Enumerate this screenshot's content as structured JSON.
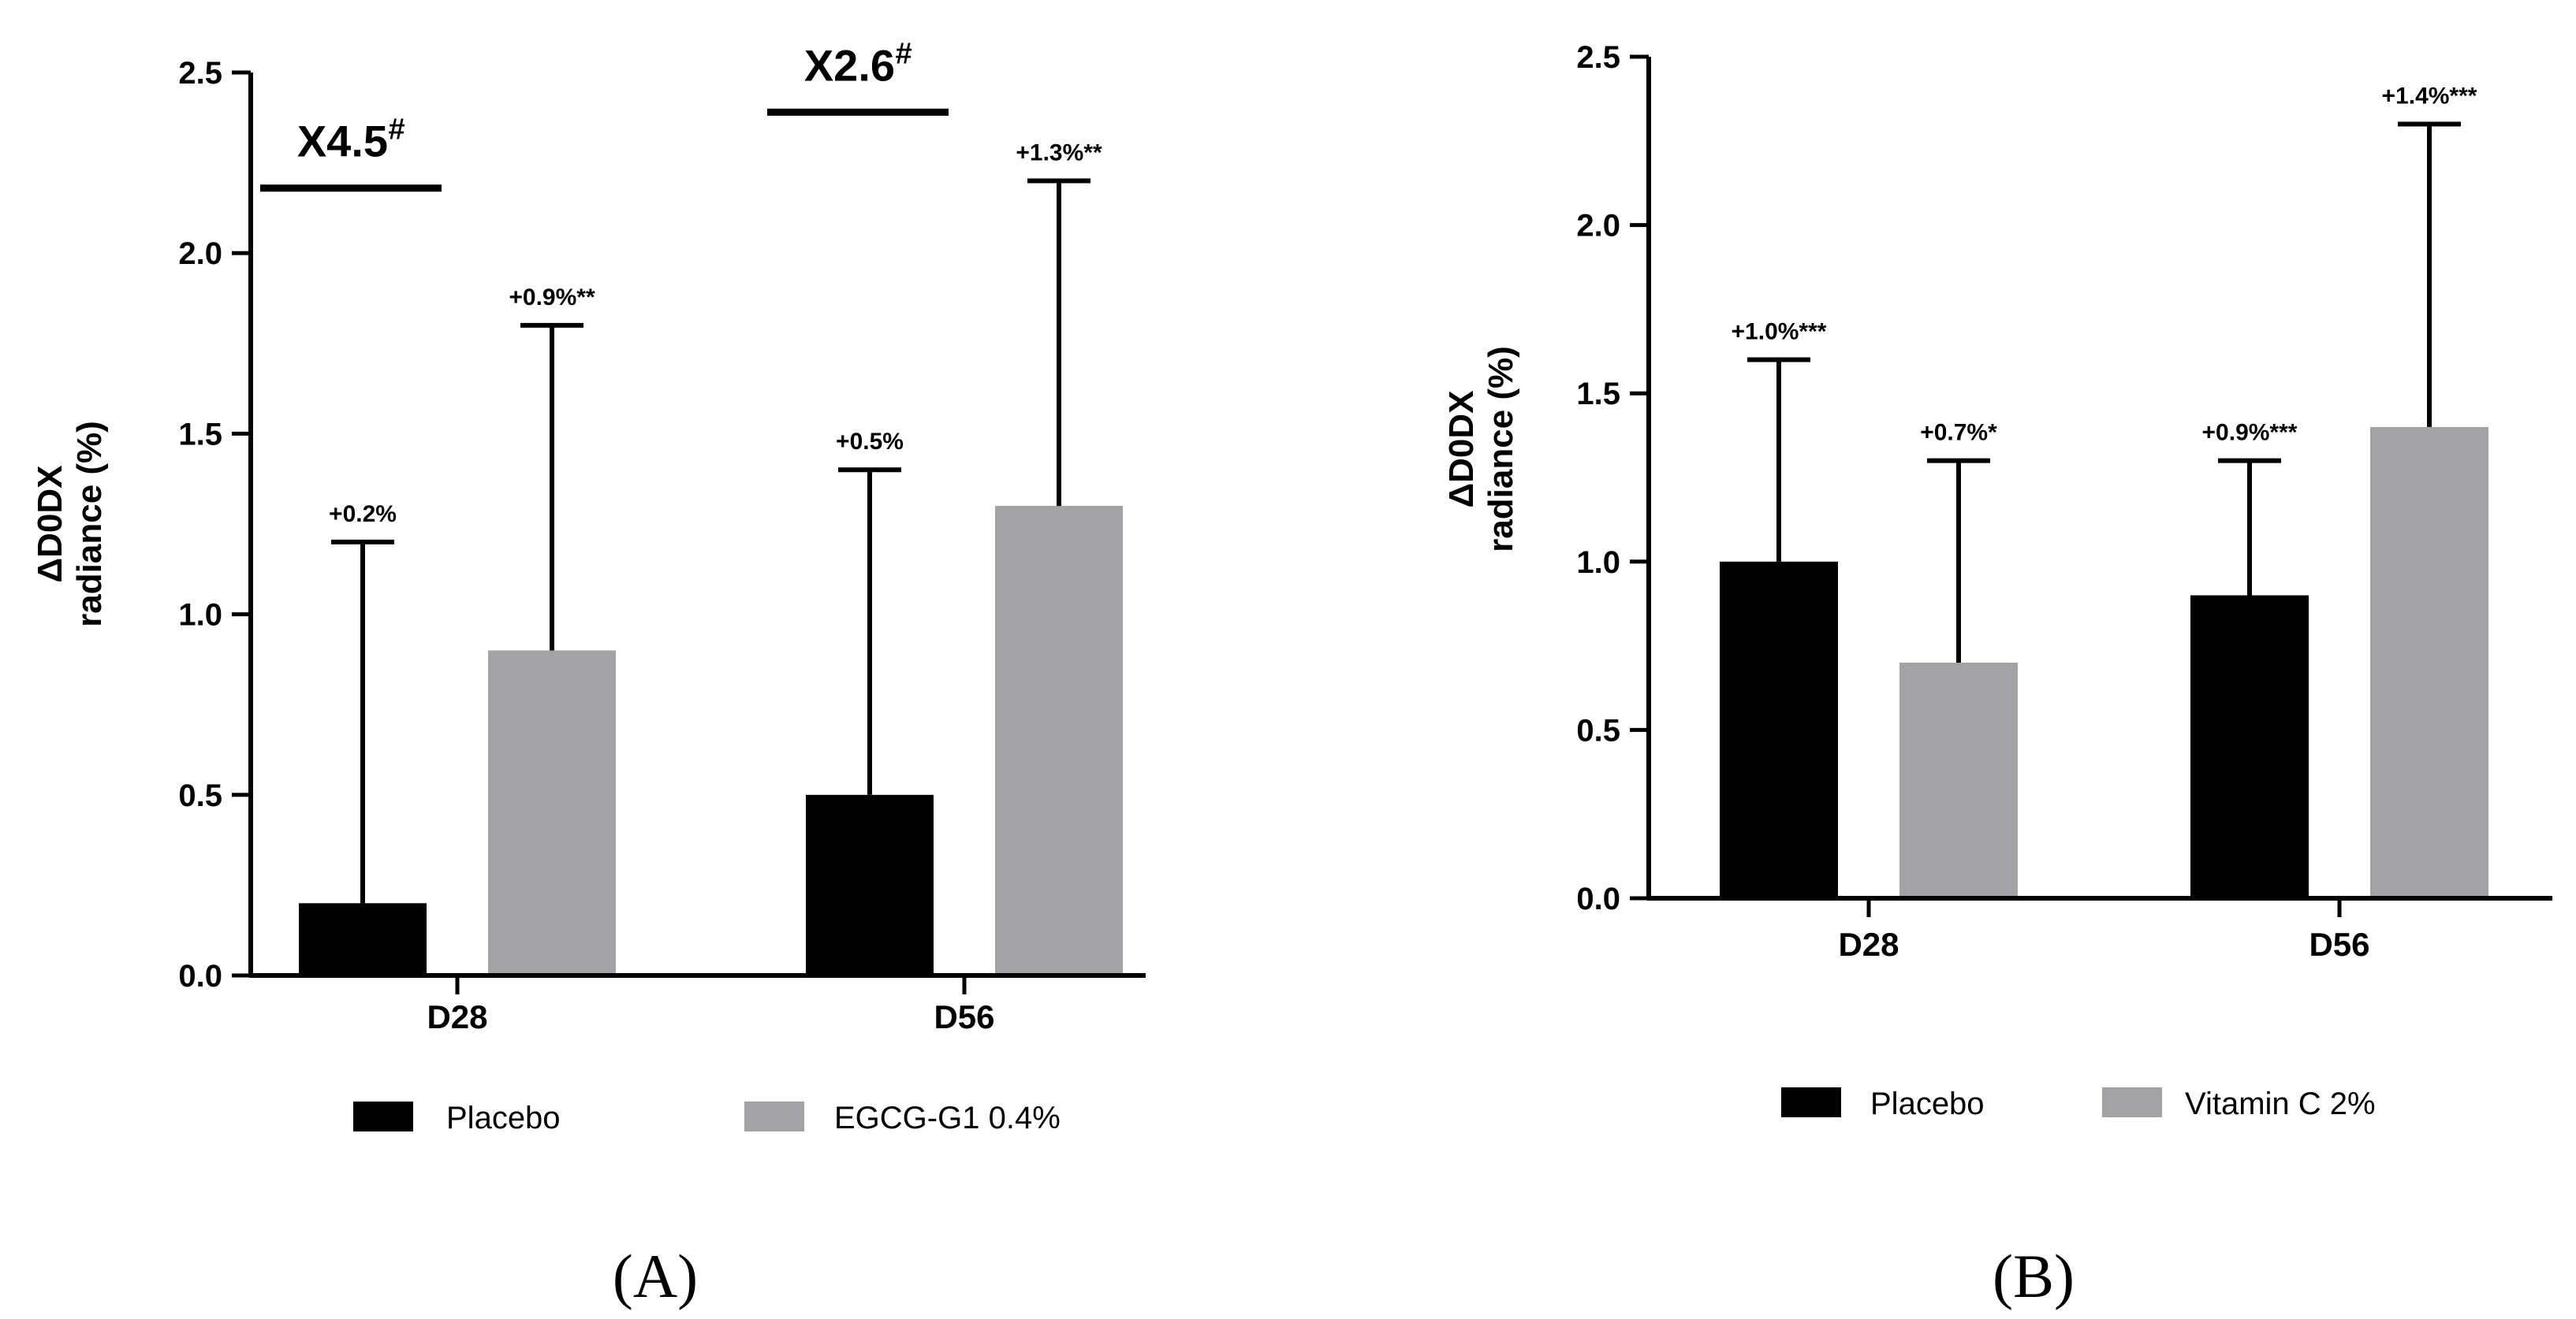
{
  "colors": {
    "placebo": "#000000",
    "active": "#a3a3a6",
    "axis": "#000000"
  },
  "chart_data": [
    {
      "type": "bar",
      "panel_label": "(A)",
      "ylabel_line1": "ΔD0DX",
      "ylabel_line2": "radiance (%)",
      "ylim": [
        0,
        2.5
      ],
      "yticks": [
        "0.0",
        "0.5",
        "1.0",
        "1.5",
        "2.0",
        "2.5"
      ],
      "categories": [
        "D28",
        "D56"
      ],
      "series": [
        {
          "name": "Placebo",
          "values": [
            0.2,
            0.5
          ],
          "error_upper": [
            1.2,
            1.4
          ],
          "labels": [
            "+0.2%",
            "+0.5%"
          ]
        },
        {
          "name": "EGCG-G1 0.4%",
          "values": [
            0.9,
            1.3
          ],
          "error_upper": [
            1.8,
            2.2
          ],
          "labels": [
            "+0.9%**",
            "+1.3%**"
          ]
        }
      ],
      "comparisons": [
        {
          "category": "D28",
          "text": "X4.5",
          "marker": "#",
          "level": 2.18
        },
        {
          "category": "D56",
          "text": "X2.6",
          "marker": "#",
          "level": 2.39
        }
      ],
      "legend": "bottom"
    },
    {
      "type": "bar",
      "panel_label": "(B)",
      "ylabel_line1": "ΔD0DX",
      "ylabel_line2": "radiance (%)",
      "ylim": [
        0,
        2.5
      ],
      "yticks": [
        "0.0",
        "0.5",
        "1.0",
        "1.5",
        "2.0",
        "2.5"
      ],
      "categories": [
        "D28",
        "D56"
      ],
      "series": [
        {
          "name": "Placebo",
          "values": [
            1.0,
            0.9
          ],
          "error_upper": [
            1.6,
            1.3
          ],
          "labels": [
            "+1.0%***",
            "+0.9%***"
          ]
        },
        {
          "name": "Vitamin C 2%",
          "values": [
            0.7,
            1.4
          ],
          "error_upper": [
            1.3,
            2.3
          ],
          "labels": [
            "+0.7%*",
            "+1.4%***"
          ]
        }
      ],
      "comparisons": [],
      "legend": "bottom"
    }
  ]
}
